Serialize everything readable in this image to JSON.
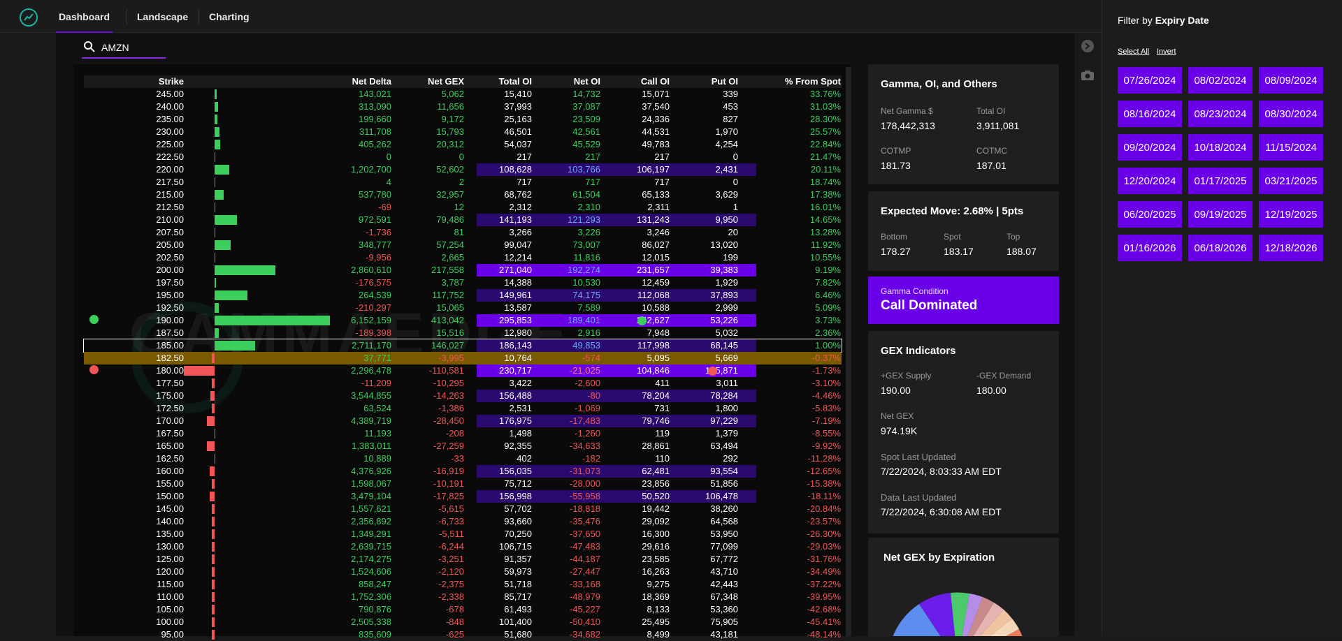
{
  "nav": {
    "tabs": [
      "Dashboard",
      "Landscape",
      "Charting"
    ]
  },
  "search": {
    "value": "AMZN"
  },
  "table": {
    "headers": [
      "Strike",
      "Net Delta",
      "Net GEX",
      "Total OI",
      "Net OI",
      "Call OI",
      "Put OI",
      "% From Spot"
    ],
    "rows": [
      {
        "strike": "245.00",
        "nd": "143,021",
        "gex": "5,062",
        "tot": "15,410",
        "noi": "14,732",
        "coi": "15,071",
        "poi": "339",
        "pct": "33.76%",
        "bar": 0.02,
        "hl": 0
      },
      {
        "strike": "240.00",
        "nd": "313,090",
        "gex": "11,656",
        "tot": "37,993",
        "noi": "37,087",
        "coi": "37,540",
        "poi": "453",
        "pct": "31.03%",
        "bar": 0.03,
        "hl": 0
      },
      {
        "strike": "235.00",
        "nd": "199,660",
        "gex": "9,172",
        "tot": "25,163",
        "noi": "23,509",
        "coi": "24,336",
        "poi": "827",
        "pct": "28.30%",
        "bar": 0.025,
        "hl": 0
      },
      {
        "strike": "230.00",
        "nd": "311,708",
        "gex": "15,793",
        "tot": "46,501",
        "noi": "42,561",
        "coi": "44,531",
        "poi": "1,970",
        "pct": "25.57%",
        "bar": 0.04,
        "hl": 0
      },
      {
        "strike": "225.00",
        "nd": "405,262",
        "gex": "20,312",
        "tot": "54,037",
        "noi": "45,529",
        "coi": "49,783",
        "poi": "4,254",
        "pct": "22.84%",
        "bar": 0.05,
        "hl": 0
      },
      {
        "strike": "222.50",
        "nd": "0",
        "gex": "0",
        "tot": "217",
        "noi": "217",
        "coi": "217",
        "poi": "0",
        "pct": "21.47%",
        "bar": 0,
        "hl": 0
      },
      {
        "strike": "220.00",
        "nd": "1,202,700",
        "gex": "52,602",
        "tot": "108,628",
        "noi": "103,766",
        "coi": "106,197",
        "poi": "2,431",
        "pct": "20.11%",
        "bar": 0.127,
        "hl": 1
      },
      {
        "strike": "217.50",
        "nd": "4",
        "gex": "2",
        "tot": "717",
        "noi": "717",
        "coi": "717",
        "poi": "0",
        "pct": "18.74%",
        "bar": 0,
        "hl": 0
      },
      {
        "strike": "215.00",
        "nd": "537,780",
        "gex": "32,957",
        "tot": "68,762",
        "noi": "61,504",
        "coi": "65,133",
        "poi": "3,629",
        "pct": "17.38%",
        "bar": 0.08,
        "hl": 0
      },
      {
        "strike": "212.50",
        "nd": "-69",
        "gex": "12",
        "tot": "2,312",
        "noi": "2,310",
        "coi": "2,311",
        "poi": "1",
        "pct": "16.01%",
        "bar": 0,
        "hl": 0
      },
      {
        "strike": "210.00",
        "nd": "972,591",
        "gex": "79,486",
        "tot": "141,193",
        "noi": "121,293",
        "coi": "131,243",
        "poi": "9,950",
        "pct": "14.65%",
        "bar": 0.193,
        "hl": 1
      },
      {
        "strike": "207.50",
        "nd": "-1,736",
        "gex": "81",
        "tot": "3,266",
        "noi": "3,226",
        "coi": "3,246",
        "poi": "20",
        "pct": "13.28%",
        "bar": 0,
        "hl": 0
      },
      {
        "strike": "205.00",
        "nd": "348,777",
        "gex": "57,254",
        "tot": "99,047",
        "noi": "73,007",
        "coi": "86,027",
        "poi": "13,020",
        "pct": "11.92%",
        "bar": 0.139,
        "hl": 0
      },
      {
        "strike": "202.50",
        "nd": "-9,956",
        "gex": "2,665",
        "tot": "12,214",
        "noi": "11,816",
        "coi": "12,015",
        "poi": "199",
        "pct": "10.55%",
        "bar": 0,
        "hl": 0
      },
      {
        "strike": "200.00",
        "nd": "2,860,610",
        "gex": "217,558",
        "tot": "271,040",
        "noi": "192,274",
        "coi": "231,657",
        "poi": "39,383",
        "pct": "9.19%",
        "bar": 0.526,
        "hl": 2
      },
      {
        "strike": "197.50",
        "nd": "-176,575",
        "gex": "3,787",
        "tot": "14,388",
        "noi": "10,530",
        "coi": "12,459",
        "poi": "1,929",
        "pct": "7.82%",
        "bar": 0.01,
        "hl": 0
      },
      {
        "strike": "195.00",
        "nd": "264,539",
        "gex": "117,752",
        "tot": "149,961",
        "noi": "74,175",
        "coi": "112,068",
        "poi": "37,893",
        "pct": "6.46%",
        "bar": 0.285,
        "hl": 1
      },
      {
        "strike": "192.50",
        "nd": "-210,297",
        "gex": "15,065",
        "tot": "13,587",
        "noi": "7,589",
        "coi": "10,588",
        "poi": "2,999",
        "pct": "5.09%",
        "bar": 0.036,
        "hl": 0
      },
      {
        "strike": "190.00",
        "nd": "6,152,159",
        "gex": "413,042",
        "tot": "295,853",
        "noi": "189,401",
        "coi": "242,627",
        "poi": "53,226",
        "pct": "3.73%",
        "bar": 1.0,
        "hl": 2
      },
      {
        "strike": "187.50",
        "nd": "-189,398",
        "gex": "15,516",
        "tot": "12,980",
        "noi": "2,916",
        "coi": "7,948",
        "poi": "5,032",
        "pct": "2.36%",
        "bar": 0.037,
        "hl": 0
      },
      {
        "strike": "185.00",
        "nd": "2,711,170",
        "gex": "146,027",
        "tot": "186,143",
        "noi": "49,853",
        "coi": "117,998",
        "poi": "68,145",
        "pct": "1.00%",
        "bar": 0.354,
        "hl": 1
      },
      {
        "strike": "182.50",
        "nd": "37,771",
        "gex": "-3,995",
        "tot": "10,764",
        "noi": "-574",
        "coi": "5,095",
        "poi": "5,669",
        "pct": "-0.37%",
        "bar": -0.01,
        "hl": 0
      },
      {
        "strike": "180.00",
        "nd": "2,296,478",
        "gex": "-110,581",
        "tot": "230,717",
        "noi": "-21,025",
        "coi": "104,846",
        "poi": "125,871",
        "pct": "-1.73%",
        "bar": -0.268,
        "hl": 2
      },
      {
        "strike": "177.50",
        "nd": "-11,209",
        "gex": "-10,295",
        "tot": "3,422",
        "noi": "-2,600",
        "coi": "411",
        "poi": "3,011",
        "pct": "-3.10%",
        "bar": -0.025,
        "hl": 0
      },
      {
        "strike": "175.00",
        "nd": "3,544,855",
        "gex": "-14,263",
        "tot": "156,488",
        "noi": "-80",
        "coi": "78,204",
        "poi": "78,284",
        "pct": "-4.46%",
        "bar": -0.035,
        "hl": 1
      },
      {
        "strike": "172.50",
        "nd": "63,524",
        "gex": "-1,386",
        "tot": "2,531",
        "noi": "-1,069",
        "coi": "731",
        "poi": "1,800",
        "pct": "-5.83%",
        "bar": -0.005,
        "hl": 0
      },
      {
        "strike": "170.00",
        "nd": "4,389,719",
        "gex": "-28,450",
        "tot": "176,975",
        "noi": "-17,483",
        "coi": "79,746",
        "poi": "97,229",
        "pct": "-7.19%",
        "bar": -0.069,
        "hl": 1
      },
      {
        "strike": "167.50",
        "nd": "11,193",
        "gex": "-208",
        "tot": "1,498",
        "noi": "-1,260",
        "coi": "119",
        "poi": "1,379",
        "pct": "-8.55%",
        "bar": 0,
        "hl": 0
      },
      {
        "strike": "165.00",
        "nd": "1,383,011",
        "gex": "-27,259",
        "tot": "92,355",
        "noi": "-34,633",
        "coi": "28,861",
        "poi": "63,494",
        "pct": "-9.92%",
        "bar": -0.066,
        "hl": 0
      },
      {
        "strike": "162.50",
        "nd": "10,889",
        "gex": "-33",
        "tot": "402",
        "noi": "-182",
        "coi": "110",
        "poi": "292",
        "pct": "-11.28%",
        "bar": 0,
        "hl": 0
      },
      {
        "strike": "160.00",
        "nd": "4,376,926",
        "gex": "-16,919",
        "tot": "156,035",
        "noi": "-31,073",
        "coi": "62,481",
        "poi": "93,554",
        "pct": "-12.65%",
        "bar": -0.041,
        "hl": 1
      },
      {
        "strike": "155.00",
        "nd": "1,598,067",
        "gex": "-10,191",
        "tot": "75,712",
        "noi": "-28,000",
        "coi": "23,856",
        "poi": "51,856",
        "pct": "-15.38%",
        "bar": -0.025,
        "hl": 0
      },
      {
        "strike": "150.00",
        "nd": "3,479,104",
        "gex": "-17,825",
        "tot": "156,998",
        "noi": "-55,958",
        "coi": "50,520",
        "poi": "106,478",
        "pct": "-18.11%",
        "bar": -0.043,
        "hl": 1
      },
      {
        "strike": "145.00",
        "nd": "1,557,621",
        "gex": "-5,615",
        "tot": "57,702",
        "noi": "-18,818",
        "coi": "19,442",
        "poi": "38,260",
        "pct": "-20.84%",
        "bar": -0.014,
        "hl": 0
      },
      {
        "strike": "140.00",
        "nd": "2,356,892",
        "gex": "-6,733",
        "tot": "93,660",
        "noi": "-35,476",
        "coi": "29,092",
        "poi": "64,568",
        "pct": "-23.57%",
        "bar": -0.016,
        "hl": 0
      },
      {
        "strike": "135.00",
        "nd": "1,349,291",
        "gex": "-5,511",
        "tot": "70,250",
        "noi": "-37,650",
        "coi": "16,300",
        "poi": "53,950",
        "pct": "-26.30%",
        "bar": -0.013,
        "hl": 0
      },
      {
        "strike": "130.00",
        "nd": "2,639,715",
        "gex": "-6,244",
        "tot": "106,715",
        "noi": "-47,483",
        "coi": "29,616",
        "poi": "77,099",
        "pct": "-29.03%",
        "bar": -0.015,
        "hl": 0
      },
      {
        "strike": "125.00",
        "nd": "2,174,275",
        "gex": "-3,251",
        "tot": "91,357",
        "noi": "-44,187",
        "coi": "23,585",
        "poi": "67,772",
        "pct": "-31.76%",
        "bar": -0.008,
        "hl": 0
      },
      {
        "strike": "120.00",
        "nd": "1,524,606",
        "gex": "-2,120",
        "tot": "59,973",
        "noi": "-27,447",
        "coi": "16,263",
        "poi": "43,710",
        "pct": "-34.49%",
        "bar": -0.005,
        "hl": 0
      },
      {
        "strike": "115.00",
        "nd": "858,247",
        "gex": "-2,375",
        "tot": "51,718",
        "noi": "-33,168",
        "coi": "9,275",
        "poi": "42,443",
        "pct": "-37.22%",
        "bar": -0.006,
        "hl": 0
      },
      {
        "strike": "110.00",
        "nd": "1,752,306",
        "gex": "-2,338",
        "tot": "85,717",
        "noi": "-48,979",
        "coi": "18,369",
        "poi": "67,348",
        "pct": "-39.95%",
        "bar": -0.006,
        "hl": 0
      },
      {
        "strike": "105.00",
        "nd": "790,876",
        "gex": "-678",
        "tot": "61,493",
        "noi": "-45,227",
        "coi": "8,133",
        "poi": "53,360",
        "pct": "-42.68%",
        "bar": -0.002,
        "hl": 0
      },
      {
        "strike": "100.00",
        "nd": "2,505,338",
        "gex": "-848",
        "tot": "101,400",
        "noi": "-50,410",
        "coi": "25,495",
        "poi": "75,905",
        "pct": "-45.41%",
        "bar": -0.002,
        "hl": 0
      },
      {
        "strike": "95.00",
        "nd": "835,609",
        "gex": "-625",
        "tot": "51,680",
        "noi": "-34,682",
        "coi": "8,499",
        "poi": "43,181",
        "pct": "-48.14%",
        "bar": -0.002,
        "hl": 0
      }
    ]
  },
  "watermark": "GAMMAEDGE",
  "cards": {
    "gamma_oi": {
      "title": "Gamma, OI, and Others",
      "net_gamma_label": "Net Gamma $",
      "net_gamma": "178,442,313",
      "total_oi_label": "Total OI",
      "total_oi": "3,911,081",
      "cotmp_label": "COTMP",
      "cotmp": "181.73",
      "cotmc_label": "COTMC",
      "cotmc": "187.01"
    },
    "expected": {
      "title": "Expected Move: 2.68% | 5pts",
      "bottom_label": "Bottom",
      "bottom": "178.27",
      "spot_label": "Spot",
      "spot": "183.17",
      "top_label": "Top",
      "top": "188.07"
    },
    "gamma_condition": {
      "label": "Gamma Condition",
      "value": "Call Dominated"
    },
    "gex": {
      "title": "GEX Indicators",
      "supply_label": "+GEX Supply",
      "supply": "190.00",
      "demand_label": "-GEX Demand",
      "demand": "180.00",
      "net_label": "Net GEX",
      "net": "974.19K",
      "spot_upd_label": "Spot Last Updated",
      "spot_upd": "7/22/2024, 8:03:33 AM EDT",
      "data_upd_label": "Data Last Updated",
      "data_upd": "7/22/2024, 6:30:08 AM EDT"
    },
    "pie": {
      "title": "Net GEX by Expiration"
    }
  },
  "sidebar": {
    "filter_prefix": "Filter by ",
    "filter_bold": "Expiry Date",
    "select_all": "Select All",
    "invert": "Invert",
    "dates": [
      "07/26/2024",
      "08/02/2024",
      "08/09/2024",
      "08/16/2024",
      "08/23/2024",
      "08/30/2024",
      "09/20/2024",
      "10/18/2024",
      "11/15/2024",
      "12/20/2024",
      "01/17/2025",
      "03/21/2025",
      "06/20/2025",
      "09/19/2025",
      "12/19/2025",
      "01/16/2026",
      "06/18/2026",
      "12/18/2026"
    ]
  },
  "colors": {
    "accent": "#6a00e8",
    "green": "#3ccf5e",
    "red": "#f25555",
    "highlight_dark": "#2a0a6e",
    "highlight_bright": "#6a00e8",
    "spot_row": "#7a5a00"
  }
}
